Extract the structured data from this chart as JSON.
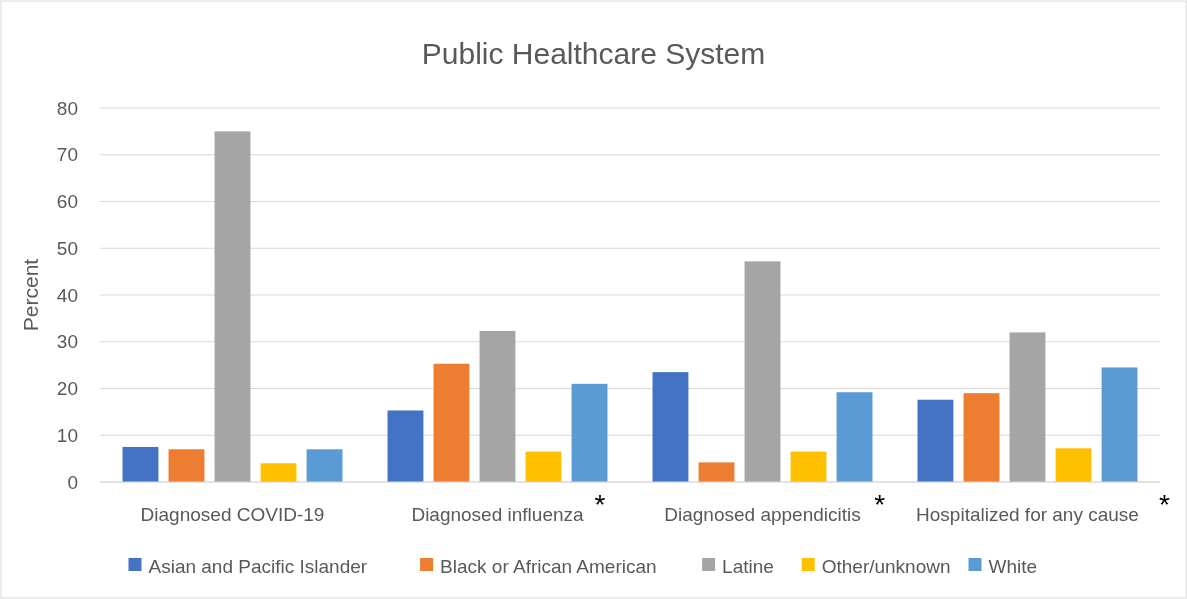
{
  "chart_data": {
    "type": "bar",
    "title": "Public Healthcare System",
    "ylabel": "Percent",
    "categories": [
      "Diagnosed COVID-19",
      "Diagnosed influenza",
      "Diagnosed appendicitis",
      "Hospitalized for any cause"
    ],
    "series": [
      {
        "name": "Asian and Pacific Islander",
        "color": "#4472c4",
        "values": [
          7.5,
          15.3,
          23.5,
          17.6
        ]
      },
      {
        "name": "Black or African American",
        "color": "#ed7d31",
        "values": [
          7,
          25.3,
          4.2,
          19
        ]
      },
      {
        "name": "Latine",
        "color": "#a5a5a5",
        "values": [
          75,
          32.3,
          47.2,
          32
        ]
      },
      {
        "name": "Other/unknown",
        "color": "#ffc000",
        "values": [
          4,
          6.5,
          6.5,
          7.2
        ]
      },
      {
        "name": "White",
        "color": "#5b9bd5",
        "values": [
          7,
          21,
          19.2,
          24.5
        ]
      }
    ],
    "ylim": [
      0,
      80
    ],
    "yticks": [
      0,
      10,
      20,
      30,
      40,
      50,
      60,
      70,
      80
    ],
    "grid": "y",
    "legend": "bottom",
    "annotations": [
      "*",
      "*",
      "*"
    ]
  }
}
